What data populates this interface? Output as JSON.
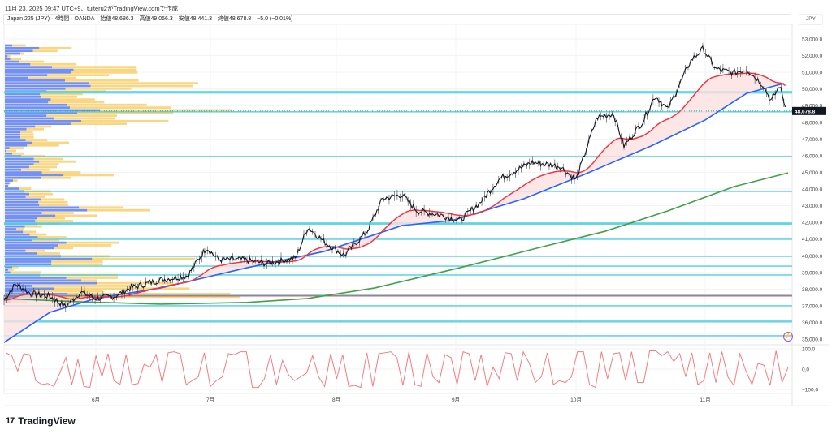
{
  "header": {
    "credit": "11月 23, 2025 09:47 UTC+9、tuiteru2がTradingView.comで作成",
    "symbol": "Japan 225 (JPY) · 4時間 · OANDA",
    "open": "始値48,686.3",
    "high": "高値49,056.3",
    "low": "安値48,441.3",
    "close": "終値48,678.8",
    "change": "−5.0 (−0.01%)"
  },
  "currency": "JPY",
  "brand": "TradingView",
  "alert_icon": "lightning-icon",
  "colors": {
    "price": "#131722",
    "ema_fast": "#f23645",
    "ma_mid": "#2962ff",
    "ma_long": "#43a047",
    "level": "#4dd0e1",
    "osc": "#f77c80",
    "profile_up": "#5b7cf0",
    "profile_down": "#f9cf6a",
    "fill": "#fbe0e0"
  },
  "chart_data": [
    {
      "type": "line",
      "title": "Japan 225 (JPY) 4H",
      "x_unit": "days since 2025-05-01",
      "xlabel": "",
      "ylabel": "JPY",
      "ylim": [
        34700,
        53600
      ],
      "yticks": [
        "53,000.0",
        "52,000.0",
        "51,000.0",
        "50,000.0",
        "49,000.0",
        "48,000.0",
        "47,000.0",
        "46,000.0",
        "45,000.0",
        "44,000.0",
        "43,000.0",
        "42,000.0",
        "41,000.0",
        "40,000.0",
        "39,000.0",
        "38,000.0",
        "37,000.0",
        "36,000.0",
        "35,000.0"
      ],
      "ytick_values": [
        53000,
        52000,
        51000,
        50000,
        49000,
        48000,
        47000,
        46000,
        45000,
        44000,
        43000,
        42000,
        41000,
        40000,
        39000,
        38000,
        37000,
        36000,
        35000
      ],
      "xticks": [
        {
          "label": "6月",
          "day": 31
        },
        {
          "label": "7月",
          "day": 61
        },
        {
          "label": "8月",
          "day": 92
        },
        {
          "label": "9月",
          "day": 123
        },
        {
          "label": "10月",
          "day": 153
        },
        {
          "label": "11月",
          "day": 184
        }
      ],
      "last_price_label": "48,678.8",
      "last_price": 48678.8,
      "price": [
        [
          7,
          37340
        ],
        [
          10,
          38310
        ],
        [
          14,
          37730
        ],
        [
          19,
          37580
        ],
        [
          23,
          36950
        ],
        [
          27,
          37820
        ],
        [
          31,
          37440
        ],
        [
          36,
          37580
        ],
        [
          40,
          38070
        ],
        [
          44,
          38310
        ],
        [
          48,
          38560
        ],
        [
          55,
          38800
        ],
        [
          60,
          40500
        ],
        [
          63,
          39770
        ],
        [
          69,
          39770
        ],
        [
          75,
          39530
        ],
        [
          82,
          39870
        ],
        [
          85,
          41720
        ],
        [
          89,
          40840
        ],
        [
          94,
          40020
        ],
        [
          100,
          41470
        ],
        [
          104,
          43420
        ],
        [
          109,
          43660
        ],
        [
          113,
          42690
        ],
        [
          119,
          42450
        ],
        [
          124,
          42110
        ],
        [
          129,
          43180
        ],
        [
          134,
          44630
        ],
        [
          142,
          45610
        ],
        [
          149,
          45370
        ],
        [
          153,
          44540
        ],
        [
          158,
          48280
        ],
        [
          162,
          48530
        ],
        [
          164.5,
          46580
        ],
        [
          169,
          48040
        ],
        [
          172,
          49600
        ],
        [
          175,
          48770
        ],
        [
          180.5,
          51690
        ],
        [
          183.5,
          52420
        ],
        [
          186.5,
          51200
        ],
        [
          191,
          50960
        ],
        [
          194,
          51200
        ],
        [
          198,
          50230
        ],
        [
          200,
          49250
        ],
        [
          202,
          50230
        ],
        [
          203.6,
          48679
        ]
      ],
      "series": [
        {
          "name": "MA mid",
          "points": [
            [
              7,
              34800
            ],
            [
              19,
              36610
            ],
            [
              31,
              37440
            ],
            [
              48,
              38070
            ],
            [
              70,
              39280
            ],
            [
              89,
              40260
            ],
            [
              109,
              41810
            ],
            [
              122,
              42110
            ],
            [
              140,
              43420
            ],
            [
              155,
              44880
            ],
            [
              171,
              46580
            ],
            [
              184,
              48140
            ],
            [
              194,
              49740
            ],
            [
              203,
              50330
            ]
          ]
        },
        {
          "name": "MA long",
          "points": [
            [
              7,
              37440
            ],
            [
              27,
              37240
            ],
            [
              48,
              37100
            ],
            [
              70,
              37200
            ],
            [
              85,
              37440
            ],
            [
              102,
              38070
            ],
            [
              124,
              39280
            ],
            [
              144,
              40500
            ],
            [
              160,
              41470
            ],
            [
              175,
              42690
            ],
            [
              191,
              44150
            ],
            [
              204,
              44970
            ]
          ]
        }
      ],
      "levels": [
        49840,
        49760,
        48630,
        45950,
        43860,
        41960,
        41900,
        40990,
        39970,
        39380,
        38850,
        37680,
        37600,
        37000,
        36120,
        36040,
        35200
      ],
      "red_level": 37590,
      "volume_profile": {
        "top_price": 52610,
        "row_step": 162,
        "rows": [
          [
            27,
            77
          ],
          [
            127,
            247
          ],
          [
            104,
            194
          ],
          [
            57,
            72
          ],
          [
            10,
            20
          ],
          [
            20,
            60
          ],
          [
            52,
            144
          ],
          [
            94,
            264
          ],
          [
            174,
            487
          ],
          [
            254,
            487
          ],
          [
            244,
            490
          ],
          [
            157,
            384
          ],
          [
            87,
            262
          ],
          [
            222,
            494
          ],
          [
            312,
            714
          ],
          [
            317,
            694
          ],
          [
            224,
            467
          ],
          [
            154,
            374
          ],
          [
            130,
            287
          ],
          [
            132,
            267
          ],
          [
            170,
            332
          ],
          [
            160,
            367
          ],
          [
            230,
            524
          ],
          [
            240,
            614
          ],
          [
            352,
            840
          ],
          [
            267,
            622
          ],
          [
            154,
            414
          ],
          [
            182,
            407
          ],
          [
            282,
            604
          ],
          [
            244,
            450
          ],
          [
            112,
            172
          ],
          [
            80,
            144
          ],
          [
            57,
            104
          ],
          [
            57,
            107
          ],
          [
            57,
            107
          ],
          [
            77,
            157
          ],
          [
            100,
            237
          ],
          [
            82,
            200
          ],
          [
            17,
            70
          ],
          [
            4,
            42
          ],
          [
            27,
            72
          ],
          [
            60,
            147
          ],
          [
            107,
            214
          ],
          [
            127,
            264
          ],
          [
            107,
            200
          ],
          [
            90,
            192
          ],
          [
            60,
            164
          ],
          [
            137,
            280
          ],
          [
            217,
            402
          ],
          [
            132,
            244
          ],
          [
            30,
            47
          ],
          [
            17,
            20
          ],
          [
            12,
            14
          ],
          [
            52,
            97
          ],
          [
            72,
            170
          ],
          [
            90,
            177
          ],
          [
            77,
            150
          ],
          [
            134,
            220
          ],
          [
            124,
            232
          ],
          [
            127,
            234
          ],
          [
            274,
            437
          ],
          [
            304,
            537
          ],
          [
            137,
            254
          ],
          [
            187,
            342
          ],
          [
            117,
            222
          ],
          [
            112,
            252
          ],
          [
            117,
            204
          ],
          [
            74,
            137
          ],
          [
            42,
            70
          ],
          [
            67,
            114
          ],
          [
            92,
            154
          ],
          [
            122,
            227
          ],
          [
            102,
            202
          ],
          [
            227,
            422
          ],
          [
            197,
            394
          ],
          [
            182,
            252
          ],
          [
            77,
            147
          ],
          [
            117,
            204
          ],
          [
            207,
            390
          ],
          [
            322,
            702
          ],
          [
            172,
            362
          ],
          [
            172,
            362
          ],
          [
            27,
            50
          ],
          [
            12,
            32
          ],
          [
            20,
            132
          ],
          [
            130,
            417
          ],
          [
            227,
            417
          ],
          [
            282,
            342
          ],
          [
            342,
            622
          ],
          [
            102,
            462
          ],
          [
            182,
            682
          ],
          [
            102,
            362
          ],
          [
            232,
            832
          ],
          [
            142,
            867
          ],
          [
            92,
            282
          ],
          [
            22,
            82
          ]
        ]
      },
      "oscillator": {
        "name": "Oscillator",
        "ylim": [
          -100,
          100
        ],
        "yticks": [
          "100.0",
          "0.0",
          "−100.0"
        ],
        "ytick_values": [
          100,
          0,
          -100
        ],
        "values": [
          85,
          70,
          -10,
          80,
          75,
          -60,
          -80,
          -75,
          -90,
          -20,
          60,
          -80,
          50,
          -90,
          -95,
          70,
          -40,
          80,
          -60,
          -80,
          75,
          -80,
          -75,
          25,
          10,
          75,
          -70,
          85,
          90,
          80,
          -80,
          -60,
          -40,
          85,
          -90,
          -60,
          -40,
          80,
          75,
          90,
          90,
          -95,
          -95,
          -50,
          75,
          -80,
          45,
          -30,
          -60,
          -40,
          -20,
          70,
          -40,
          -90,
          80,
          -50,
          75,
          -90,
          -85,
          -95,
          85,
          -90,
          80,
          85,
          90,
          60,
          -85,
          90,
          -80,
          -90,
          85,
          -40,
          -70,
          75,
          60,
          -80,
          90,
          80,
          -60,
          75,
          -90,
          10,
          -50,
          85,
          80,
          -60,
          90,
          30,
          -70,
          -40,
          85,
          -80,
          -60,
          -70,
          -40,
          90,
          90,
          -80,
          -95,
          90,
          -50,
          80,
          85,
          -60,
          90,
          -70,
          -70,
          95,
          95,
          70,
          90,
          40,
          80,
          -40,
          85,
          -80,
          -60,
          85,
          -70,
          90,
          -40,
          -85,
          80,
          -10,
          -80,
          30,
          20,
          -85,
          95,
          -70,
          10
        ]
      }
    }
  ]
}
